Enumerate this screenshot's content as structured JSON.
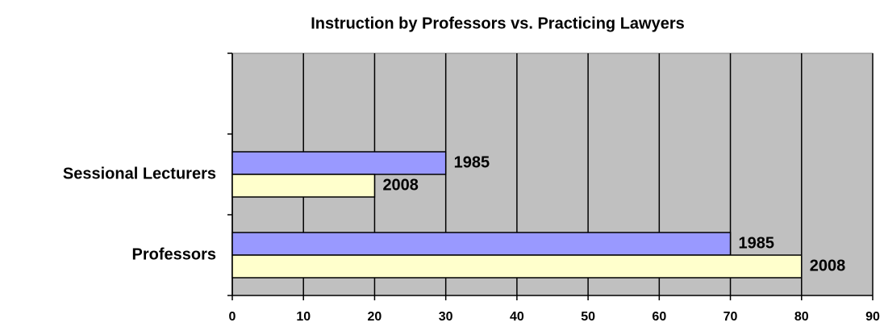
{
  "chart_data": {
    "type": "hbar",
    "title": "Instruction by Professors vs. Practicing Lawyers",
    "categories": [
      "Professors",
      "Sessional Lecturers",
      null
    ],
    "series": [
      {
        "name": "1985",
        "color": "#9999ff",
        "values": [
          70,
          30,
          null
        ]
      },
      {
        "name": "2008",
        "color": "#ffffcc",
        "values": [
          80,
          20,
          null
        ]
      }
    ],
    "xlim": [
      0,
      90
    ],
    "xticks": [
      0,
      10,
      20,
      30,
      40,
      50,
      60,
      70,
      80,
      90
    ],
    "grid": true
  }
}
